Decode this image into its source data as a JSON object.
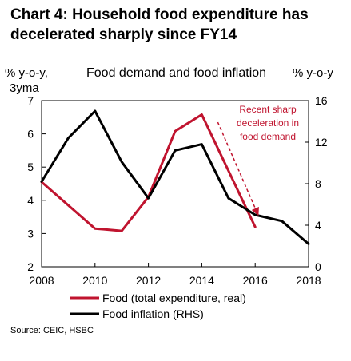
{
  "title_lines": [
    "Chart 4: Household food expenditure has",
    "decelerated sharply since FY14"
  ],
  "source": "Source: CEIC, HSBC",
  "colors": {
    "red": "#c0142f",
    "black": "#000000"
  },
  "chart_data": {
    "type": "line",
    "title": "Food demand and food inflation",
    "y_left_label_lines": [
      "% y-o-y,",
      "3yma"
    ],
    "y_right_label": "% y-o-y",
    "x_range": [
      2008,
      2018
    ],
    "x_ticks": [
      2008,
      2010,
      2012,
      2014,
      2016,
      2018
    ],
    "y_left_range": [
      2,
      7
    ],
    "y_left_ticks": [
      2,
      3,
      4,
      5,
      6,
      7
    ],
    "y_right_range": [
      0,
      16
    ],
    "y_right_ticks": [
      0,
      4,
      8,
      12,
      16
    ],
    "grid": false,
    "legend_position": "bottom",
    "series": [
      {
        "name": "Food (total expenditure, real)",
        "axis": "left",
        "color": "#c0142f",
        "x": [
          2008,
          2010,
          2011,
          2012,
          2013,
          2014,
          2016
        ],
        "y": [
          4.55,
          3.15,
          3.08,
          4.1,
          6.08,
          6.58,
          3.2
        ]
      },
      {
        "name": "Food inflation (RHS)",
        "axis": "right",
        "color": "#000000",
        "x": [
          2008,
          2009,
          2010,
          2011,
          2012,
          2013,
          2014,
          2015,
          2016,
          2017,
          2018
        ],
        "y": [
          8.2,
          12.4,
          15.0,
          10.1,
          6.6,
          11.2,
          11.8,
          6.6,
          5.0,
          4.4,
          2.2
        ]
      }
    ],
    "annotation": {
      "text_lines": [
        "Recent sharp",
        "deceleration in",
        "food demand"
      ],
      "arrow_from": [
        2014.6,
        6.35
      ],
      "arrow_to": [
        2016.1,
        3.58
      ]
    }
  }
}
